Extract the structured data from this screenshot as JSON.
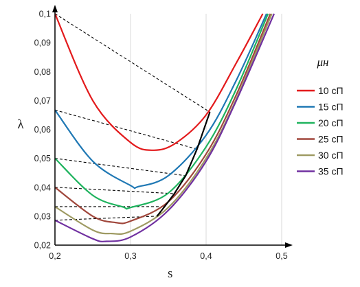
{
  "chart_data": {
    "type": "line",
    "xlabel": "s",
    "ylabel": "λ",
    "xlim": [
      0.2,
      0.5
    ],
    "ylim": [
      0.02,
      0.1
    ],
    "x_ticks": [
      "0,2",
      "0,3",
      "0,4",
      "0,5"
    ],
    "y_ticks": [
      "0,02",
      "0,03",
      "0,04",
      "0,05",
      "0,06",
      "0,07",
      "0,08",
      "0,09",
      "0,1"
    ],
    "legend_title": "μн",
    "legend_position": "right",
    "grid": "vertical",
    "series": [
      {
        "name": "10 сП",
        "color": "#e31a1c",
        "points": [
          [
            0.2,
            0.1
          ],
          [
            0.25,
            0.07
          ],
          [
            0.3,
            0.0555
          ],
          [
            0.33,
            0.0528
          ],
          [
            0.36,
            0.0553
          ],
          [
            0.4,
            0.065
          ],
          [
            0.44,
            0.083
          ],
          [
            0.475,
            0.1
          ]
        ]
      },
      {
        "name": "15 сП",
        "color": "#1f78b4",
        "points": [
          [
            0.2,
            0.0667
          ],
          [
            0.25,
            0.049
          ],
          [
            0.3,
            0.0406
          ],
          [
            0.31,
            0.0402
          ],
          [
            0.35,
            0.044
          ],
          [
            0.4,
            0.058
          ],
          [
            0.44,
            0.077
          ],
          [
            0.48,
            0.1
          ]
        ]
      },
      {
        "name": "20 сП",
        "color": "#1fb35e",
        "points": [
          [
            0.2,
            0.05
          ],
          [
            0.25,
            0.0372
          ],
          [
            0.29,
            0.0332
          ],
          [
            0.3,
            0.033
          ],
          [
            0.35,
            0.038
          ],
          [
            0.4,
            0.054
          ],
          [
            0.44,
            0.074
          ],
          [
            0.482,
            0.1
          ]
        ]
      },
      {
        "name": "25 сП",
        "color": "#a0473c",
        "points": [
          [
            0.2,
            0.04
          ],
          [
            0.25,
            0.03
          ],
          [
            0.28,
            0.0278
          ],
          [
            0.3,
            0.0283
          ],
          [
            0.35,
            0.035
          ],
          [
            0.4,
            0.0515
          ],
          [
            0.44,
            0.072
          ],
          [
            0.485,
            0.1
          ]
        ]
      },
      {
        "name": "30 сП",
        "color": "#9e9a62",
        "points": [
          [
            0.2,
            0.0333
          ],
          [
            0.25,
            0.0252
          ],
          [
            0.275,
            0.024
          ],
          [
            0.3,
            0.0248
          ],
          [
            0.35,
            0.033
          ],
          [
            0.4,
            0.05
          ],
          [
            0.44,
            0.0705
          ],
          [
            0.487,
            0.1
          ]
        ]
      },
      {
        "name": "35 сП",
        "color": "#7030a0",
        "points": [
          [
            0.2,
            0.0286
          ],
          [
            0.25,
            0.0222
          ],
          [
            0.268,
            0.0213
          ],
          [
            0.3,
            0.0228
          ],
          [
            0.35,
            0.032
          ],
          [
            0.4,
            0.049
          ],
          [
            0.44,
            0.07
          ],
          [
            0.49,
            0.1
          ]
        ]
      }
    ],
    "tangent_lines": [
      [
        [
          0.2,
          0.1
        ],
        [
          0.405,
          0.066
        ]
      ],
      [
        [
          0.2,
          0.0667
        ],
        [
          0.388,
          0.0532
        ]
      ],
      [
        [
          0.2,
          0.05
        ],
        [
          0.373,
          0.044
        ]
      ],
      [
        [
          0.2,
          0.04
        ],
        [
          0.358,
          0.0378
        ]
      ],
      [
        [
          0.2,
          0.0333
        ],
        [
          0.345,
          0.0333
        ]
      ],
      [
        [
          0.2,
          0.0286
        ],
        [
          0.335,
          0.03
        ]
      ]
    ],
    "envelope": [
      [
        0.335,
        0.03
      ],
      [
        0.345,
        0.0333
      ],
      [
        0.358,
        0.0378
      ],
      [
        0.373,
        0.044
      ],
      [
        0.388,
        0.0532
      ],
      [
        0.405,
        0.066
      ]
    ]
  }
}
